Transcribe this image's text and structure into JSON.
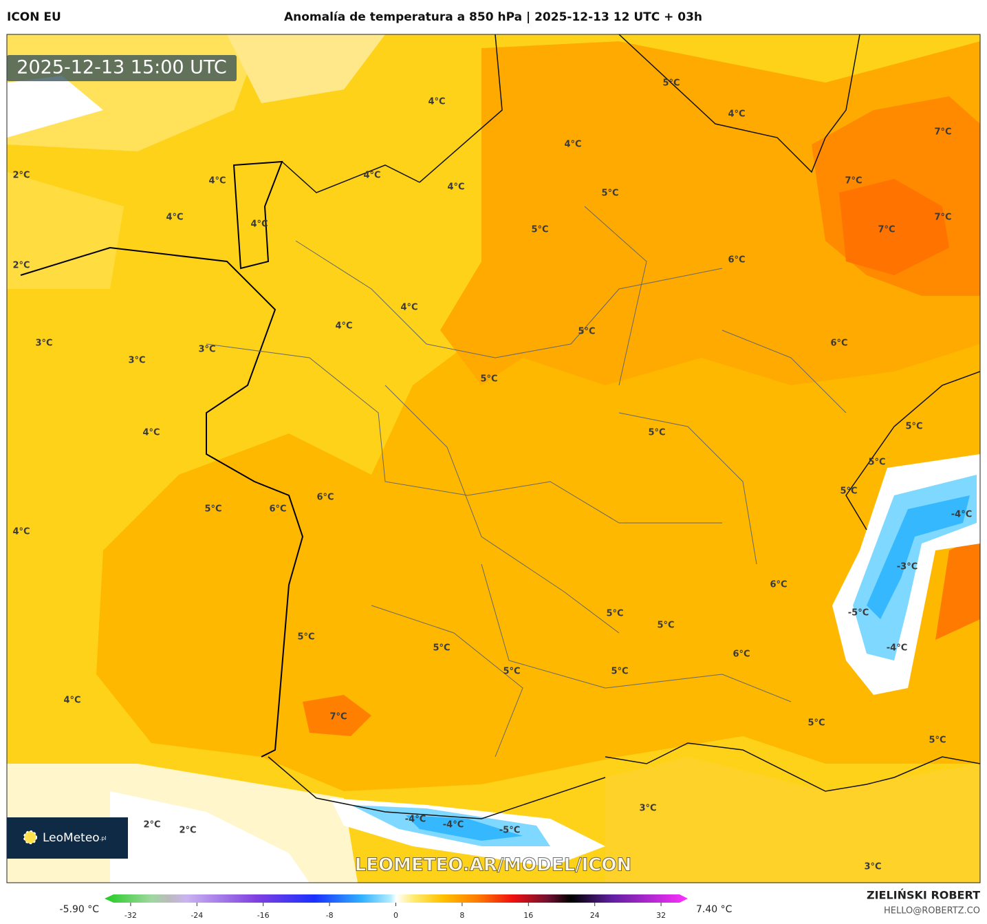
{
  "header": {
    "model": "ICON EU",
    "title": "Anomalía de temperatura a 850 hPa | 2025-12-13 12 UTC + 03h"
  },
  "timestamp": "2025-12-13 15:00 UTC",
  "labels": [
    "4°C",
    "5°C",
    "4°C",
    "4°C",
    "7°C",
    "2°C",
    "4°C",
    "4°C",
    "4°C",
    "5°C",
    "7°C",
    "4°C",
    "4°C",
    "5°C",
    "7°C",
    "7°C",
    "2°C",
    "6°C",
    "4°C",
    "4°C",
    "5°C",
    "6°C",
    "3°C",
    "3°C",
    "3°C",
    "5°C",
    "4°C",
    "5°C",
    "5°C",
    "5°C",
    "5°C",
    "6°C",
    "5°C",
    "6°C",
    "-4°C",
    "4°C",
    "-3°C",
    "6°C",
    "-5°C",
    "5°C",
    "5°C",
    "5°C",
    "5°C",
    "-4°C",
    "6°C",
    "5°C",
    "5°C",
    "4°C",
    "7°C",
    "5°C",
    "5°C",
    "3°C",
    "-4°C",
    "-4°C",
    "2°C",
    "2°C",
    "-5°C",
    "3°C"
  ],
  "logo": {
    "name": "LeoMeteo",
    "suffix": ".pl"
  },
  "watermark": "LEOMETEO.AR/MODEL/ICON",
  "colorbar": {
    "min_label": "-5.90 °C",
    "max_label": "7.40 °C",
    "ticks": [
      -32,
      -24,
      -16,
      -8,
      0,
      8,
      16,
      24,
      32
    ]
  },
  "footer": {
    "author": "ZIELIŃSKI ROBERT",
    "contact": "HELLO@ROBERTZ.CO"
  }
}
